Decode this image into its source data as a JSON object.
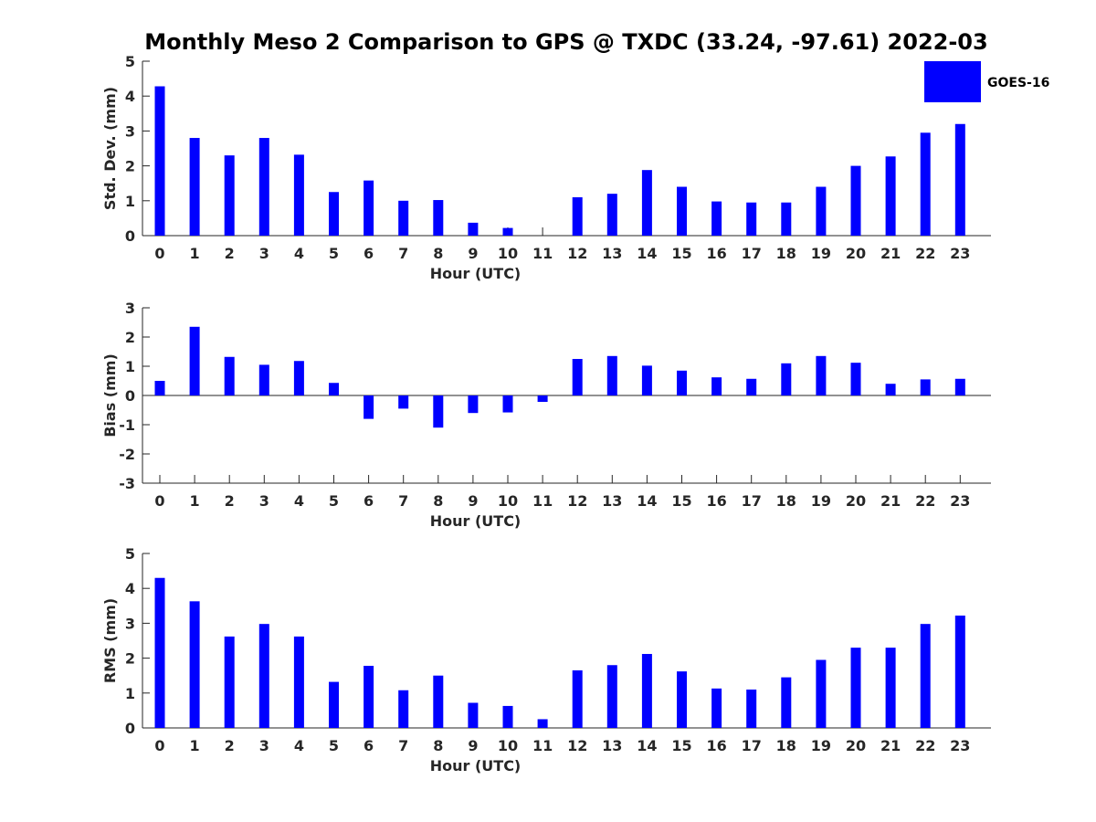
{
  "figure": {
    "title": "Monthly Meso 2 Comparison to GPS @ TXDC (33.24, -97.61) 2022-03",
    "legend": {
      "label": "GOES-16",
      "color": "#0000ff",
      "placement": "top-right"
    }
  },
  "chart_data": [
    {
      "type": "bar",
      "xlabel": "Hour (UTC)",
      "ylabel": "Std. Dev. (mm)",
      "ylim": [
        0,
        5
      ],
      "yticks": [
        0,
        1,
        2,
        3,
        4,
        5
      ],
      "categories": [
        "0",
        "1",
        "2",
        "3",
        "4",
        "5",
        "6",
        "7",
        "8",
        "9",
        "10",
        "11",
        "12",
        "13",
        "14",
        "15",
        "16",
        "17",
        "18",
        "19",
        "20",
        "21",
        "22",
        "23"
      ],
      "series": [
        {
          "name": "GOES-16",
          "color": "#0000ff",
          "values": [
            4.28,
            2.8,
            2.3,
            2.8,
            2.32,
            1.25,
            1.58,
            1.0,
            1.02,
            0.37,
            0.22,
            0.0,
            1.1,
            1.2,
            1.88,
            1.4,
            0.98,
            0.95,
            0.95,
            1.4,
            2.0,
            2.27,
            2.95,
            3.2
          ]
        }
      ],
      "grid": false
    },
    {
      "type": "bar",
      "xlabel": "Hour (UTC)",
      "ylabel": "Bias (mm)",
      "ylim": [
        -3,
        3
      ],
      "yticks": [
        -3,
        -2,
        -1,
        0,
        1,
        2,
        3
      ],
      "categories": [
        "0",
        "1",
        "2",
        "3",
        "4",
        "5",
        "6",
        "7",
        "8",
        "9",
        "10",
        "11",
        "12",
        "13",
        "14",
        "15",
        "16",
        "17",
        "18",
        "19",
        "20",
        "21",
        "22",
        "23"
      ],
      "series": [
        {
          "name": "GOES-16",
          "color": "#0000ff",
          "values": [
            0.5,
            2.35,
            1.32,
            1.05,
            1.18,
            0.43,
            -0.8,
            -0.45,
            -1.1,
            -0.6,
            -0.58,
            -0.22,
            1.25,
            1.35,
            1.02,
            0.85,
            0.62,
            0.57,
            1.1,
            1.35,
            1.12,
            0.4,
            0.55,
            0.57
          ]
        }
      ],
      "grid": false
    },
    {
      "type": "bar",
      "xlabel": "Hour (UTC)",
      "ylabel": "RMS (mm)",
      "ylim": [
        0,
        5
      ],
      "yticks": [
        0,
        1,
        2,
        3,
        4,
        5
      ],
      "categories": [
        "0",
        "1",
        "2",
        "3",
        "4",
        "5",
        "6",
        "7",
        "8",
        "9",
        "10",
        "11",
        "12",
        "13",
        "14",
        "15",
        "16",
        "17",
        "18",
        "19",
        "20",
        "21",
        "22",
        "23"
      ],
      "series": [
        {
          "name": "GOES-16",
          "color": "#0000ff",
          "values": [
            4.3,
            3.63,
            2.62,
            2.98,
            2.62,
            1.32,
            1.78,
            1.08,
            1.5,
            0.72,
            0.63,
            0.25,
            1.65,
            1.8,
            2.12,
            1.62,
            1.13,
            1.1,
            1.45,
            1.95,
            2.3,
            2.3,
            2.98,
            3.22
          ]
        }
      ],
      "grid": false
    }
  ]
}
